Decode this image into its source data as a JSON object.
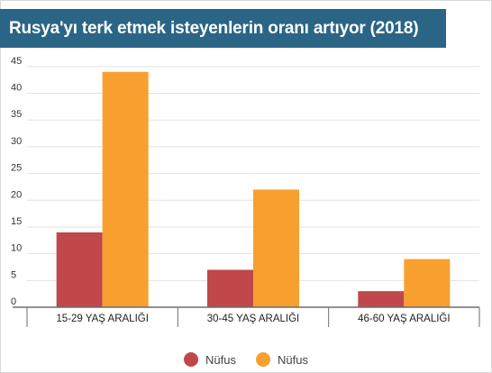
{
  "title": "Rusya'yı terk etmek isteyenlerin oranı artıyor (2018)",
  "colors": {
    "banner": "#2a6585",
    "series_red": "#c0474a",
    "series_orange": "#f7a030",
    "grid": "#e2e2e2",
    "axis": "#6e6e6e",
    "tick_text": "#333333"
  },
  "chart_data": {
    "type": "bar",
    "title": "Rusya'yı terk etmek isteyenlerin oranı artıyor (2018)",
    "categories": [
      "15-29 YAŞ ARALIĞI",
      "30-45 YAŞ ARALIĞI",
      "46-60 YAŞ ARALIĞI"
    ],
    "series": [
      {
        "name": "Nüfus",
        "color": "#c0474a",
        "values": [
          14,
          7,
          3
        ]
      },
      {
        "name": "Nüfus",
        "color": "#f7a030",
        "values": [
          44,
          22,
          9
        ]
      }
    ],
    "yticks": [
      0,
      5,
      10,
      15,
      20,
      25,
      30,
      35,
      40,
      45
    ],
    "ylim": [
      0,
      47
    ],
    "xlabel": "",
    "ylabel": "",
    "grid": true,
    "legend_position": "bottom"
  },
  "legend": [
    {
      "label": "Nüfus",
      "color": "#c0474a"
    },
    {
      "label": "Nüfus",
      "color": "#f7a030"
    }
  ]
}
